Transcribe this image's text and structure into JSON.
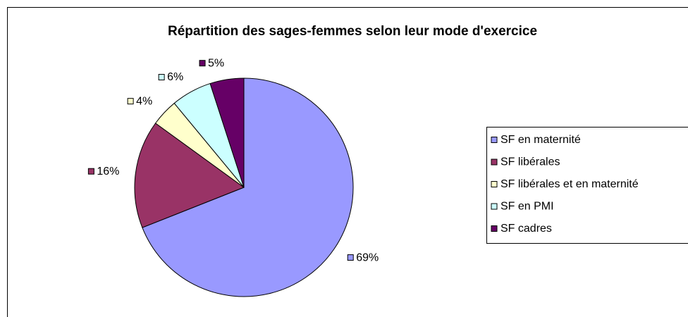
{
  "chart_data": {
    "type": "pie",
    "title": "Répartition des sages-femmes selon leur mode d'exercice",
    "categories": [
      "SF en maternité",
      "SF libérales",
      "SF libérales et en maternité",
      "SF en PMI",
      "SF cadres"
    ],
    "values": [
      69,
      16,
      4,
      6,
      5
    ],
    "value_labels": [
      "69%",
      "16%",
      "4%",
      "6%",
      "5%"
    ],
    "colors": [
      "#9999ff",
      "#993366",
      "#ffffcc",
      "#ccffff",
      "#660066"
    ],
    "legend": "right"
  }
}
